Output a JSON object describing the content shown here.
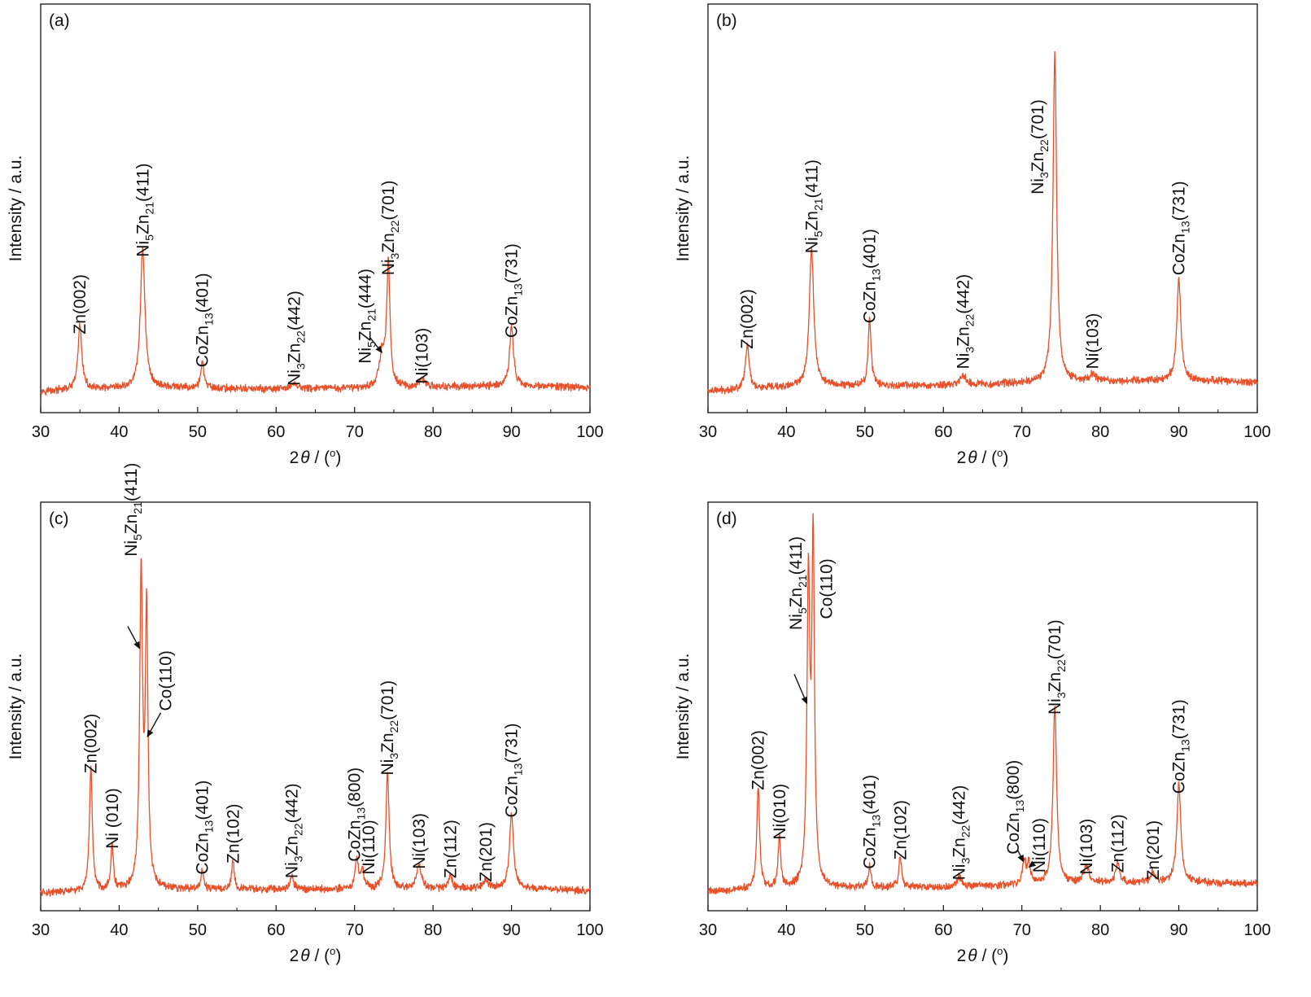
{
  "figure": {
    "line_color": "#e8502a",
    "axis_color": "#111111"
  },
  "chart_data": [
    {
      "type": "line",
      "panel_label": "(a)",
      "xlabel_prefix": "2",
      "xlabel_theta": "θ",
      "xlabel_unit": " / (",
      "xlabel_deg": "o",
      "xlabel_close": ")",
      "ylabel": "Intensity / a.u.",
      "xlim": [
        30,
        100
      ],
      "ylim": [
        0,
        100
      ],
      "xticks": [
        "30",
        "40",
        "50",
        "60",
        "70",
        "80",
        "90",
        "100"
      ],
      "baseline": [
        [
          30,
          2.5
        ],
        [
          45,
          3.5
        ],
        [
          60,
          3.0
        ],
        [
          75,
          3.5
        ],
        [
          90,
          4.0
        ],
        [
          100,
          3.5
        ]
      ],
      "peaks": [
        {
          "x": 35.0,
          "y": 17.5,
          "w": 0.3
        },
        {
          "x": 43.0,
          "y": 38.0,
          "w": 0.35
        },
        {
          "x": 50.6,
          "y": 7.5,
          "w": 0.22
        },
        {
          "x": 62.3,
          "y": 1.5,
          "w": 0.5
        },
        {
          "x": 73.5,
          "y": 9.0,
          "w": 0.4
        },
        {
          "x": 74.3,
          "y": 33.0,
          "w": 0.25
        },
        {
          "x": 78.6,
          "y": 2.0,
          "w": 0.4
        },
        {
          "x": 90.0,
          "y": 16.0,
          "w": 0.3
        }
      ],
      "annotations": [
        {
          "x": 35.0,
          "y": 18.0,
          "text": [
            {
              "t": "Zn(002)"
            }
          ]
        },
        {
          "x": 43.0,
          "y": 39.0,
          "text": [
            {
              "t": "Ni"
            },
            {
              "t": "5",
              "s": "sub"
            },
            {
              "t": "Zn"
            },
            {
              "t": "21",
              "s": "sub"
            },
            {
              "t": "(411)"
            }
          ]
        },
        {
          "x": 50.6,
          "y": 9.0,
          "text": [
            {
              "t": "CoZn"
            },
            {
              "t": "13",
              "s": "sub"
            },
            {
              "t": "(401)"
            }
          ]
        },
        {
          "x": 62.3,
          "y": 4.0,
          "text": [
            {
              "t": "Ni"
            },
            {
              "t": "3",
              "s": "sub"
            },
            {
              "t": "Zn"
            },
            {
              "t": "22",
              "s": "sub"
            },
            {
              "t": "(442)"
            }
          ]
        },
        {
          "x": 71.3,
          "y": 10.0,
          "text": [
            {
              "t": "Ni"
            },
            {
              "t": "5",
              "s": "sub"
            },
            {
              "t": "Zn"
            },
            {
              "t": "21",
              "s": "sub"
            },
            {
              "t": "(444)"
            }
          ]
        },
        {
          "x": 74.3,
          "y": 34.0,
          "text": [
            {
              "t": "Ni"
            },
            {
              "t": "3",
              "s": "sub"
            },
            {
              "t": "Zn"
            },
            {
              "t": "22",
              "s": "sub"
            },
            {
              "t": "(701)"
            }
          ]
        },
        {
          "x": 78.6,
          "y": 4.5,
          "text": [
            {
              "t": "Ni(103)"
            }
          ]
        },
        {
          "x": 90.0,
          "y": 17.0,
          "text": [
            {
              "t": "CoZn"
            },
            {
              "t": "13",
              "s": "sub"
            },
            {
              "t": "(731)"
            }
          ]
        }
      ],
      "arrows": [
        {
          "from": [
            72.0,
            17.0
          ],
          "to": [
            73.5,
            13.0
          ]
        }
      ]
    },
    {
      "type": "line",
      "panel_label": "(b)",
      "xlabel_prefix": "2",
      "xlabel_theta": "θ",
      "xlabel_unit": " / (",
      "xlabel_deg": "o",
      "xlabel_close": ")",
      "ylabel": "Intensity / a.u.",
      "xlim": [
        30,
        100
      ],
      "ylim": [
        0,
        100
      ],
      "xticks": [
        "30",
        "40",
        "50",
        "60",
        "70",
        "80",
        "90",
        "100"
      ],
      "baseline": [
        [
          30,
          2.5
        ],
        [
          45,
          4.0
        ],
        [
          60,
          4.0
        ],
        [
          75,
          5.0
        ],
        [
          90,
          5.5
        ],
        [
          100,
          5.0
        ]
      ],
      "peaks": [
        {
          "x": 35.0,
          "y": 12.0,
          "w": 0.3
        },
        {
          "x": 43.2,
          "y": 37.0,
          "w": 0.35
        },
        {
          "x": 50.6,
          "y": 18.5,
          "w": 0.22
        },
        {
          "x": 62.5,
          "y": 2.5,
          "w": 0.5
        },
        {
          "x": 74.2,
          "y": 90.0,
          "w": 0.28
        },
        {
          "x": 79.0,
          "y": 2.0,
          "w": 0.4
        },
        {
          "x": 90.0,
          "y": 28.0,
          "w": 0.3
        }
      ],
      "annotations": [
        {
          "x": 35.0,
          "y": 14.0,
          "text": [
            {
              "t": "Zn(002)"
            }
          ]
        },
        {
          "x": 43.2,
          "y": 40.0,
          "text": [
            {
              "t": "Ni"
            },
            {
              "t": "5",
              "s": "sub"
            },
            {
              "t": "Zn"
            },
            {
              "t": "21",
              "s": "sub"
            },
            {
              "t": "(411)"
            }
          ]
        },
        {
          "x": 50.6,
          "y": 21.0,
          "text": [
            {
              "t": "CoZn"
            },
            {
              "t": "13",
              "s": "sub"
            },
            {
              "t": "(401)"
            }
          ]
        },
        {
          "x": 62.5,
          "y": 8.5,
          "text": [
            {
              "t": "Ni"
            },
            {
              "t": "3",
              "s": "sub"
            },
            {
              "t": "Zn"
            },
            {
              "t": "22",
              "s": "sub"
            },
            {
              "t": "(442)"
            }
          ]
        },
        {
          "x": 72.0,
          "y": 56.0,
          "text": [
            {
              "t": "Ni"
            },
            {
              "t": "3",
              "s": "sub"
            },
            {
              "t": "Zn"
            },
            {
              "t": "22",
              "s": "sub"
            },
            {
              "t": "(701)"
            }
          ]
        },
        {
          "x": 79.0,
          "y": 8.5,
          "text": [
            {
              "t": "Ni(103)"
            }
          ]
        },
        {
          "x": 90.0,
          "y": 34.0,
          "text": [
            {
              "t": "CoZn"
            },
            {
              "t": "13",
              "s": "sub"
            },
            {
              "t": "(731)"
            }
          ]
        }
      ],
      "arrows": []
    },
    {
      "type": "line",
      "panel_label": "(c)",
      "xlabel_prefix": "2",
      "xlabel_theta": "θ",
      "xlabel_unit": " / (",
      "xlabel_deg": "o",
      "xlabel_close": ")",
      "ylabel": "Intensity / a.u.",
      "xlim": [
        30,
        100
      ],
      "ylim": [
        0,
        100
      ],
      "xticks": [
        "30",
        "40",
        "50",
        "60",
        "70",
        "80",
        "90",
        "100"
      ],
      "baseline": [
        [
          30,
          1.5
        ],
        [
          45,
          2.5
        ],
        [
          60,
          2.5
        ],
        [
          75,
          2.5
        ],
        [
          90,
          3.0
        ],
        [
          100,
          2.0
        ]
      ],
      "peaks": [
        {
          "x": 36.4,
          "y": 33.0,
          "w": 0.22
        },
        {
          "x": 39.1,
          "y": 12.0,
          "w": 0.2
        },
        {
          "x": 42.8,
          "y": 85.0,
          "w": 0.22
        },
        {
          "x": 43.5,
          "y": 74.0,
          "w": 0.2
        },
        {
          "x": 50.6,
          "y": 5.0,
          "w": 0.2
        },
        {
          "x": 54.5,
          "y": 8.0,
          "w": 0.2
        },
        {
          "x": 62.0,
          "y": 3.5,
          "w": 0.3
        },
        {
          "x": 70.3,
          "y": 8.0,
          "w": 0.25
        },
        {
          "x": 71.0,
          "y": 5.0,
          "w": 0.25
        },
        {
          "x": 74.2,
          "y": 32.0,
          "w": 0.25
        },
        {
          "x": 78.2,
          "y": 6.5,
          "w": 0.35
        },
        {
          "x": 82.2,
          "y": 4.0,
          "w": 0.25
        },
        {
          "x": 86.7,
          "y": 2.5,
          "w": 0.3
        },
        {
          "x": 90.0,
          "y": 20.0,
          "w": 0.3
        }
      ],
      "annotations": [
        {
          "x": 36.4,
          "y": 34.0,
          "text": [
            {
              "t": "Zn(002)"
            }
          ]
        },
        {
          "x": 39.1,
          "y": 13.5,
          "text": [
            {
              "t": "Ni (010)"
            }
          ]
        },
        {
          "x": 41.5,
          "y": 93.0,
          "text": [
            {
              "t": "Ni"
            },
            {
              "t": "5",
              "s": "sub"
            },
            {
              "t": "Zn"
            },
            {
              "t": "21",
              "s": "sub"
            },
            {
              "t": "(411)"
            }
          ]
        },
        {
          "x": 45.9,
          "y": 51.0,
          "text": [
            {
              "t": "Co(110)"
            }
          ]
        },
        {
          "x": 50.6,
          "y": 6.5,
          "text": [
            {
              "t": "CoZn"
            },
            {
              "t": "13",
              "s": "sub"
            },
            {
              "t": "(401)"
            }
          ]
        },
        {
          "x": 54.5,
          "y": 9.5,
          "text": [
            {
              "t": "Zn(102)"
            }
          ]
        },
        {
          "x": 62.0,
          "y": 5.5,
          "text": [
            {
              "t": "Ni"
            },
            {
              "t": "3",
              "s": "sub"
            },
            {
              "t": "Zn"
            },
            {
              "t": "22",
              "s": "sub"
            },
            {
              "t": "(442)"
            }
          ]
        },
        {
          "x": 70.0,
          "y": 10.0,
          "text": [
            {
              "t": "CoZn"
            },
            {
              "t": "13",
              "s": "sub"
            },
            {
              "t": "(800)"
            }
          ]
        },
        {
          "x": 71.8,
          "y": 6.5,
          "text": [
            {
              "t": "Ni(110)"
            }
          ]
        },
        {
          "x": 74.2,
          "y": 33.5,
          "text": [
            {
              "t": "Ni"
            },
            {
              "t": "3",
              "s": "sub"
            },
            {
              "t": "Zn"
            },
            {
              "t": "22",
              "s": "sub"
            },
            {
              "t": "(701)"
            }
          ]
        },
        {
          "x": 78.2,
          "y": 8.0,
          "text": [
            {
              "t": "Ni(103)"
            }
          ]
        },
        {
          "x": 82.2,
          "y": 5.5,
          "text": [
            {
              "t": "Zn(112)"
            }
          ]
        },
        {
          "x": 86.7,
          "y": 4.5,
          "text": [
            {
              "t": "Zn(201)"
            }
          ]
        },
        {
          "x": 90.0,
          "y": 22.0,
          "text": [
            {
              "t": "CoZn"
            },
            {
              "t": "13",
              "s": "sub"
            },
            {
              "t": "(731)"
            }
          ]
        }
      ],
      "arrows": [
        {
          "from": [
            41.1,
            74.0
          ],
          "to": [
            42.6,
            68.0
          ]
        },
        {
          "from": [
            45.3,
            50.5
          ],
          "to": [
            43.6,
            44.0
          ]
        }
      ]
    },
    {
      "type": "line",
      "panel_label": "(d)",
      "xlabel_prefix": "2",
      "xlabel_theta": "θ",
      "xlabel_unit": " / (",
      "xlabel_deg": "o",
      "xlabel_close": ")",
      "ylabel": "Intensity / a.u.",
      "xlim": [
        30,
        100
      ],
      "ylim": [
        0,
        100
      ],
      "xticks": [
        "30",
        "40",
        "50",
        "60",
        "70",
        "80",
        "90",
        "100"
      ],
      "baseline": [
        [
          30,
          2.0
        ],
        [
          45,
          3.0
        ],
        [
          60,
          3.0
        ],
        [
          75,
          4.0
        ],
        [
          90,
          4.5
        ],
        [
          100,
          4.0
        ]
      ],
      "peaks": [
        {
          "x": 36.4,
          "y": 28.0,
          "w": 0.22
        },
        {
          "x": 39.1,
          "y": 14.0,
          "w": 0.2
        },
        {
          "x": 42.8,
          "y": 82.0,
          "w": 0.22
        },
        {
          "x": 43.4,
          "y": 92.0,
          "w": 0.2
        },
        {
          "x": 50.6,
          "y": 6.0,
          "w": 0.2
        },
        {
          "x": 54.5,
          "y": 8.5,
          "w": 0.2
        },
        {
          "x": 62.0,
          "y": 3.0,
          "w": 0.3
        },
        {
          "x": 70.3,
          "y": 6.5,
          "w": 0.25
        },
        {
          "x": 70.9,
          "y": 5.5,
          "w": 0.25
        },
        {
          "x": 74.2,
          "y": 48.0,
          "w": 0.28
        },
        {
          "x": 78.2,
          "y": 4.5,
          "w": 0.4
        },
        {
          "x": 82.2,
          "y": 5.5,
          "w": 0.25
        },
        {
          "x": 86.7,
          "y": 3.0,
          "w": 0.3
        },
        {
          "x": 90.0,
          "y": 26.5,
          "w": 0.3
        }
      ],
      "annotations": [
        {
          "x": 36.4,
          "y": 29.5,
          "text": [
            {
              "t": "Zn(002)"
            }
          ]
        },
        {
          "x": 39.1,
          "y": 16.0,
          "text": [
            {
              "t": "Ni(010)"
            }
          ]
        },
        {
          "x": 41.2,
          "y": 73.0,
          "text": [
            {
              "t": "Ni"
            },
            {
              "t": "5",
              "s": "sub"
            },
            {
              "t": "Zn"
            },
            {
              "t": "21",
              "s": "sub"
            },
            {
              "t": "(411)"
            }
          ]
        },
        {
          "x": 45.1,
          "y": 76.0,
          "text": [
            {
              "t": "Co(110)"
            }
          ]
        },
        {
          "x": 50.6,
          "y": 8.0,
          "text": [
            {
              "t": "CoZn"
            },
            {
              "t": "13",
              "s": "sub"
            },
            {
              "t": "(401)"
            }
          ]
        },
        {
          "x": 54.5,
          "y": 10.5,
          "text": [
            {
              "t": "Zn(102)"
            }
          ]
        },
        {
          "x": 62.0,
          "y": 5.0,
          "text": [
            {
              "t": "Ni"
            },
            {
              "t": "3",
              "s": "sub"
            },
            {
              "t": "Zn"
            },
            {
              "t": "22",
              "s": "sub"
            },
            {
              "t": "(442)"
            }
          ]
        },
        {
          "x": 68.9,
          "y": 12.0,
          "text": [
            {
              "t": "CoZn"
            },
            {
              "t": "13",
              "s": "sub"
            },
            {
              "t": "(800)"
            }
          ]
        },
        {
          "x": 72.2,
          "y": 7.0,
          "text": [
            {
              "t": "Ni(110)"
            }
          ]
        },
        {
          "x": 74.2,
          "y": 50.0,
          "text": [
            {
              "t": "Ni"
            },
            {
              "t": "3",
              "s": "sub"
            },
            {
              "t": "Zn"
            },
            {
              "t": "22",
              "s": "sub"
            },
            {
              "t": "(701)"
            }
          ]
        },
        {
          "x": 78.2,
          "y": 6.5,
          "text": [
            {
              "t": "Ni(103)"
            }
          ]
        },
        {
          "x": 82.2,
          "y": 7.0,
          "text": [
            {
              "t": "Zn(112)"
            }
          ]
        },
        {
          "x": 86.7,
          "y": 5.0,
          "text": [
            {
              "t": "Zn(201)"
            }
          ]
        },
        {
          "x": 90.0,
          "y": 28.5,
          "text": [
            {
              "t": "CoZn"
            },
            {
              "t": "13",
              "s": "sub"
            },
            {
              "t": "(731)"
            }
          ]
        }
      ],
      "arrows": [
        {
          "from": [
            41.0,
            61.0
          ],
          "to": [
            42.6,
            53.0
          ]
        },
        {
          "from": [
            69.5,
            13.0
          ],
          "to": [
            70.2,
            10.0
          ]
        },
        {
          "from": [
            71.5,
            9.5
          ],
          "to": [
            70.9,
            8.5
          ]
        }
      ]
    }
  ]
}
